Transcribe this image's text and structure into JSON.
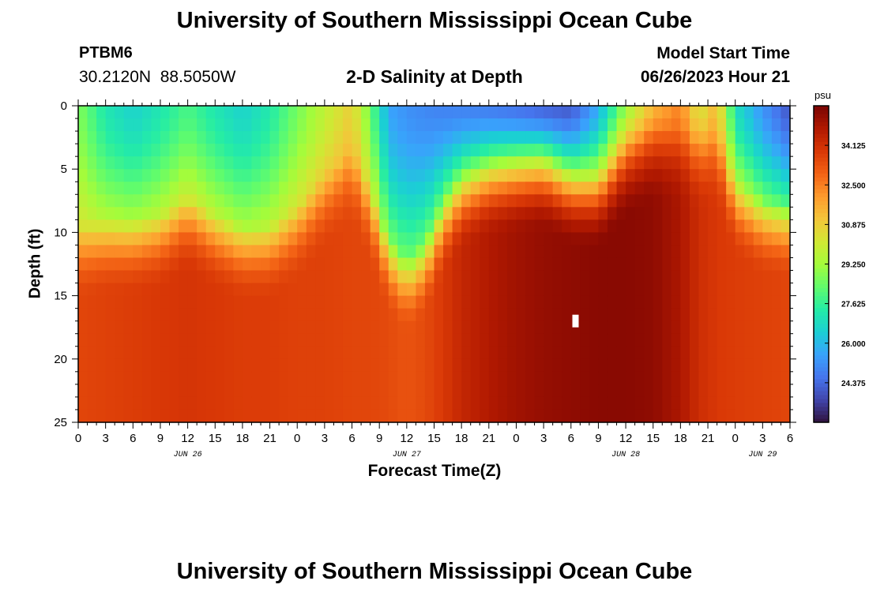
{
  "header": {
    "title": "University of Southern Mississippi Ocean Cube",
    "station_id": "PTBM6",
    "station_coords": "30.2120N  88.5050W",
    "plot_title": "2-D Salinity at Depth",
    "model_start_label": "Model Start Time",
    "model_start_value": "06/26/2023 Hour 21"
  },
  "footer": {
    "repeat_title": "University of Southern Mississippi Ocean Cube"
  },
  "colors": {
    "background": "#ffffff",
    "text": "#000000",
    "colormap": [
      "#30123b",
      "#4145ab",
      "#4675ed",
      "#39a2fc",
      "#1bcfd4",
      "#24eca6",
      "#61fc6c",
      "#a4fc3b",
      "#d1e834",
      "#f3c63a",
      "#fe9b2d",
      "#f36315",
      "#d93806",
      "#b11901",
      "#7a0403"
    ]
  },
  "chart_data": {
    "type": "heatmap",
    "title": "2-D Salinity at Depth",
    "xlabel": "Forecast Time(Z)",
    "ylabel": "Depth (ft)",
    "x_range_hours": [
      0,
      78
    ],
    "x_tick_step_hours": 3,
    "x_tick_labels": [
      "0",
      "3",
      "6",
      "9",
      "12",
      "15",
      "18",
      "21",
      "0",
      "3",
      "6",
      "9",
      "12",
      "15",
      "18",
      "21",
      "0",
      "3",
      "6",
      "9",
      "12",
      "15",
      "18",
      "21",
      "0",
      "3",
      "6"
    ],
    "date_labels": [
      {
        "label": "JUN 26",
        "hour": 12
      },
      {
        "label": "JUN 27",
        "hour": 36
      },
      {
        "label": "JUN 28",
        "hour": 60
      },
      {
        "label": "JUN 29",
        "hour": 75
      }
    ],
    "y_range_ft": [
      0,
      25
    ],
    "y_tick_labels": [
      "0",
      "5",
      "10",
      "15",
      "20",
      "25"
    ],
    "y_ticks": [
      0,
      5,
      10,
      15,
      20,
      25
    ],
    "colorbar": {
      "unit": "psu",
      "min": 22.75,
      "max": 35.75,
      "tick_labels": [
        "34.125",
        "32.500",
        "30.875",
        "29.250",
        "27.625",
        "26.000",
        "24.375"
      ],
      "tick_values": [
        34.125,
        32.5,
        30.875,
        29.25,
        27.625,
        26.0,
        24.375
      ]
    },
    "grid": false,
    "model": "surface salinity and halocline depth vary with time; deep water (>15 ft) ~33.5-35.5 psu",
    "keyframes_hours": [
      0,
      3,
      6,
      9,
      12,
      15,
      18,
      21,
      24,
      27,
      30,
      32,
      34,
      36,
      38,
      40,
      42,
      45,
      48,
      51,
      54,
      57,
      60,
      63,
      66,
      68,
      70,
      72,
      75,
      78
    ],
    "surface_salinity_psu": [
      28.8,
      27.2,
      26.6,
      27.2,
      28.0,
      27.2,
      26.6,
      27.3,
      28.6,
      29.8,
      30.9,
      28.5,
      25.6,
      25.2,
      25.0,
      24.9,
      24.9,
      24.8,
      24.6,
      24.3,
      24.1,
      25.8,
      29.2,
      31.5,
      32.5,
      30.2,
      31.5,
      27.0,
      25.3,
      24.0
    ],
    "halocline_depth_ft": [
      9.5,
      9.0,
      9.0,
      8.6,
      7.2,
      8.6,
      9.5,
      9.5,
      8.0,
      5.5,
      3.5,
      6.5,
      10.5,
      12.2,
      10.8,
      7.5,
      5.5,
      4.5,
      4.2,
      4.0,
      5.2,
      5.5,
      3.0,
      2.0,
      2.0,
      2.5,
      2.0,
      6.0,
      7.5,
      7.8
    ],
    "deep_salinity_psu": [
      33.6,
      33.7,
      33.8,
      33.9,
      34.0,
      33.9,
      33.8,
      33.8,
      33.7,
      33.7,
      33.6,
      33.6,
      33.5,
      33.3,
      33.5,
      33.9,
      34.4,
      34.8,
      35.1,
      35.3,
      35.4,
      35.5,
      35.5,
      35.4,
      34.9,
      34.2,
      33.9,
      33.8,
      33.7,
      33.6
    ],
    "missing_cells": [
      {
        "hour": 54.5,
        "depth_ft": 17.0
      }
    ]
  }
}
